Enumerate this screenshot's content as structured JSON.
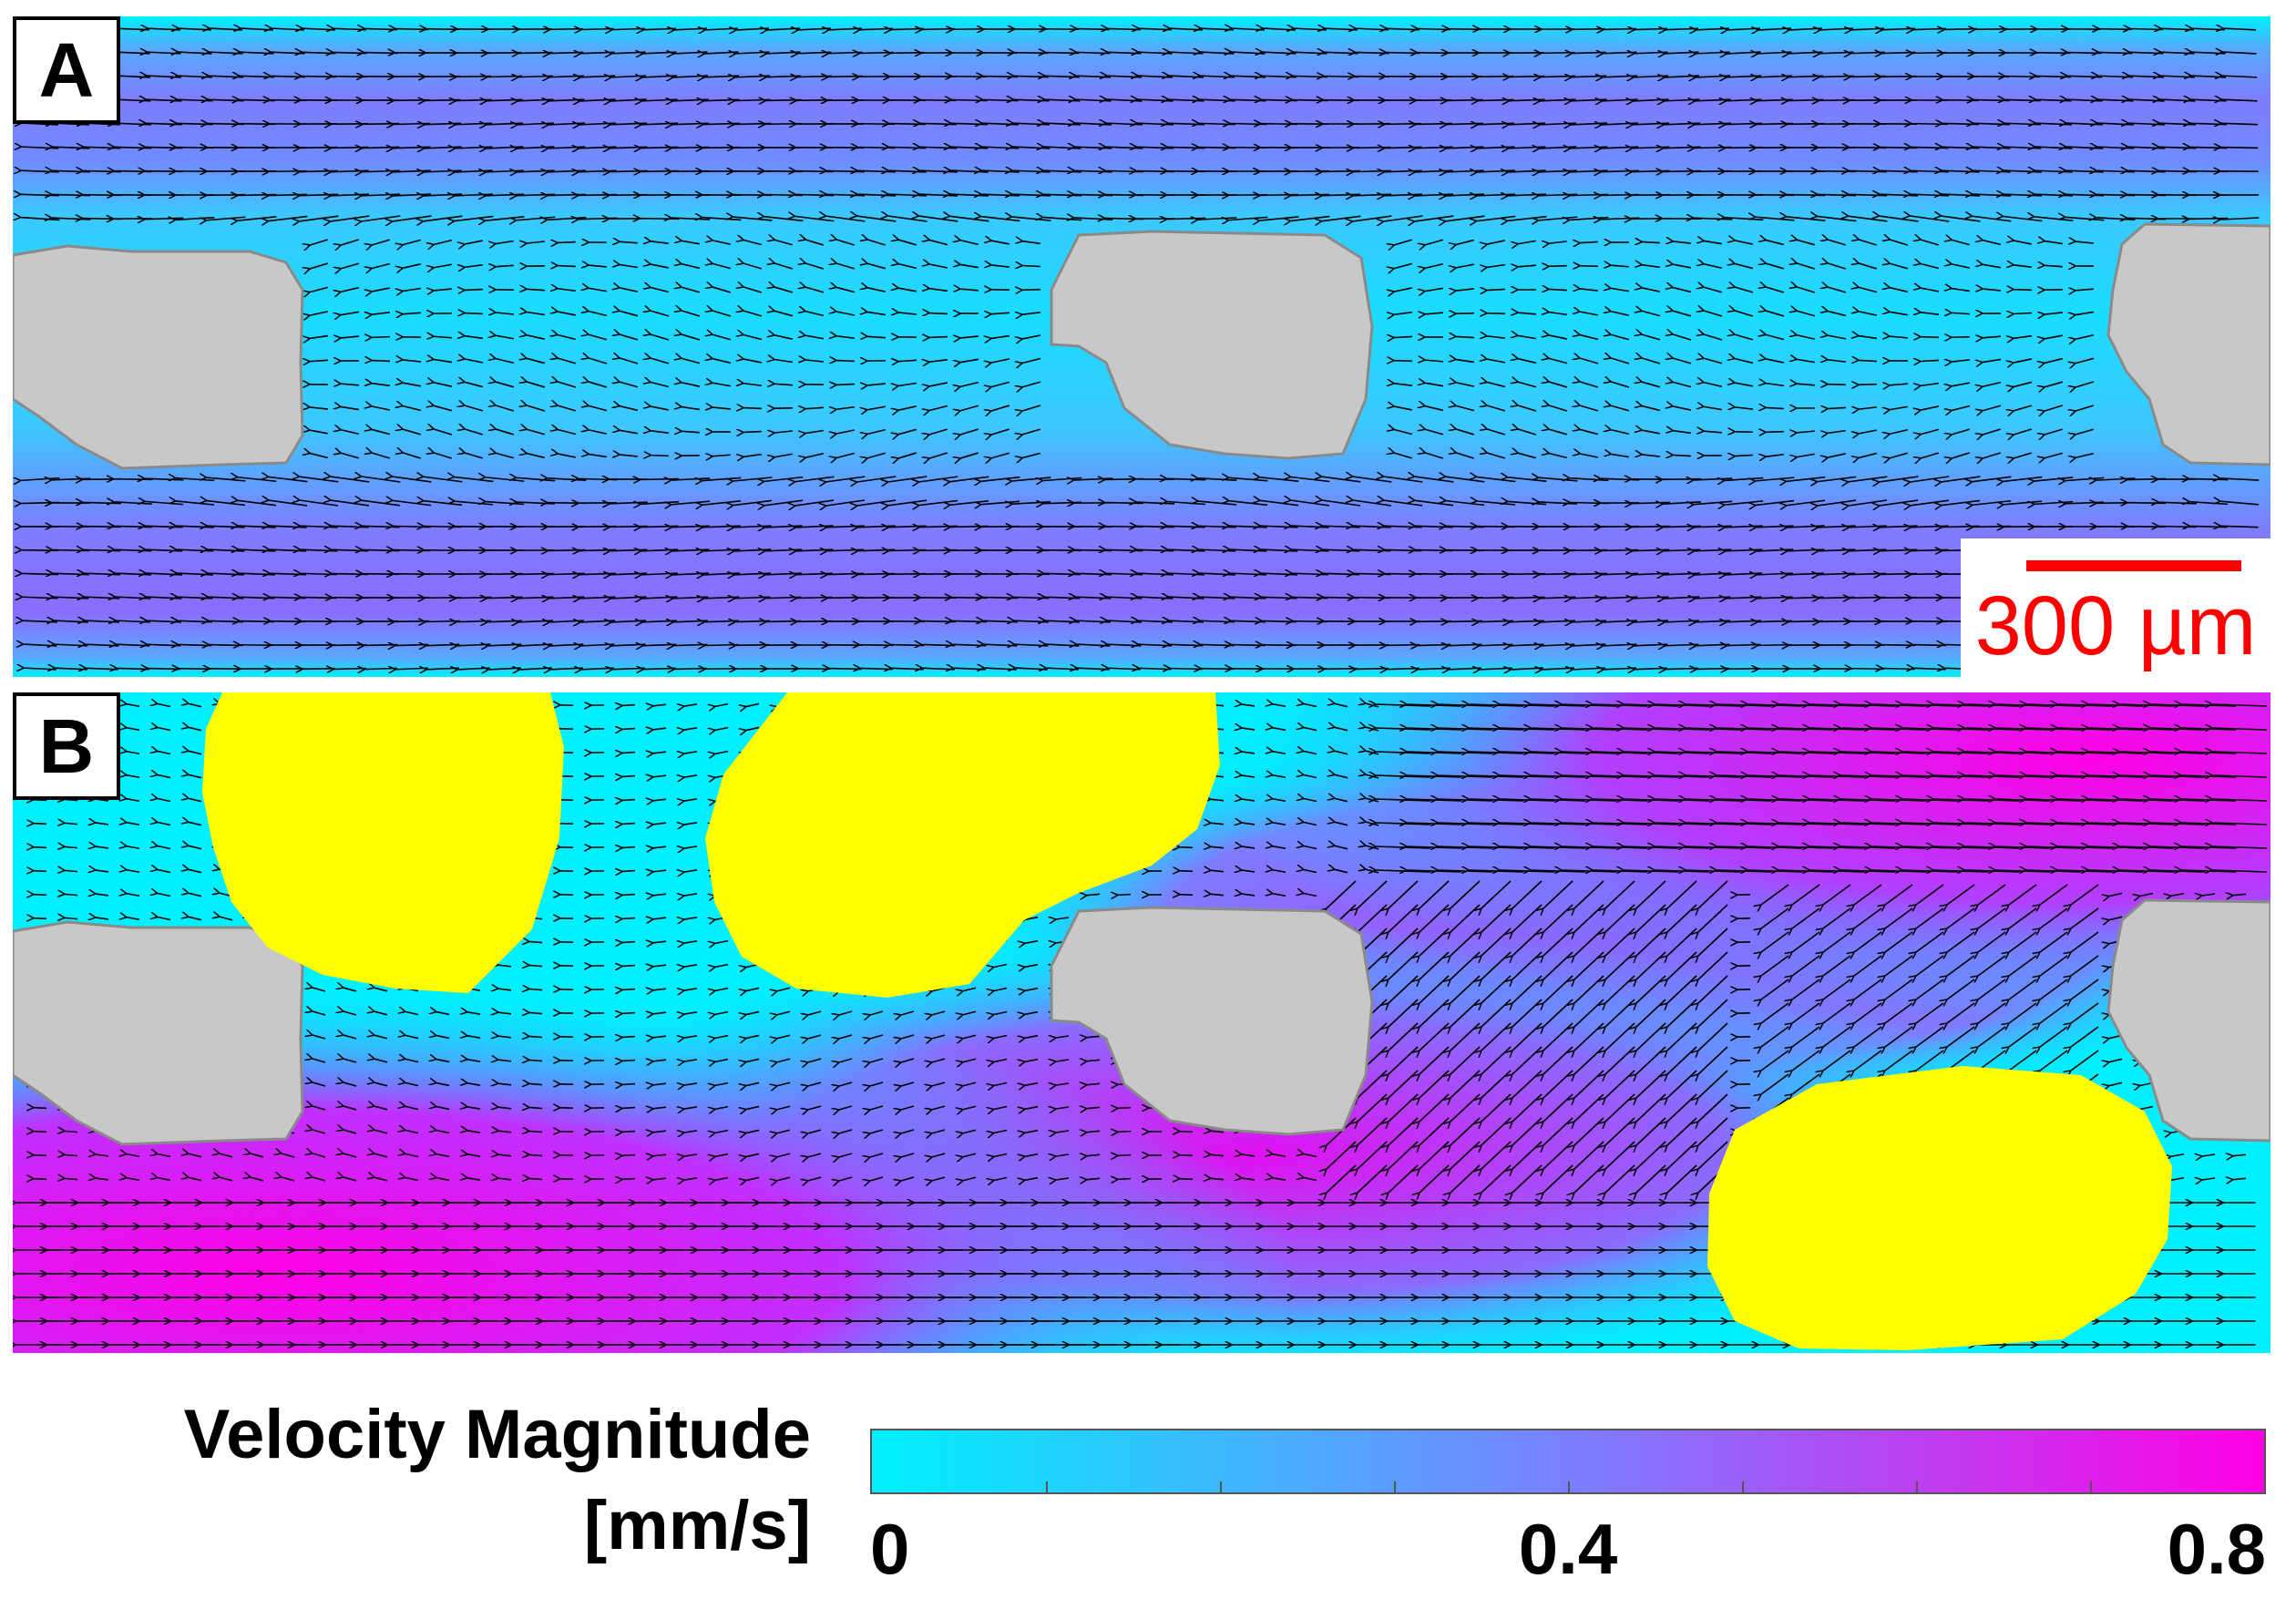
{
  "panels": [
    {
      "label": "A"
    },
    {
      "label": "B"
    }
  ],
  "scale_bar": {
    "text": "300 µm",
    "color": "#ff0000"
  },
  "legend": {
    "title_line1": "Velocity Magnitude",
    "title_line2": "[mm/s]",
    "ticks": [
      "0",
      "0.4",
      "0.8"
    ],
    "range": [
      0,
      0.8
    ],
    "gradient": [
      "#00f0ff",
      "#7a80ff",
      "#ff00e6"
    ]
  },
  "colors": {
    "solid_grain": "#c8c8c8",
    "second_phase": "#ffff00",
    "arrows": "#000000"
  }
}
